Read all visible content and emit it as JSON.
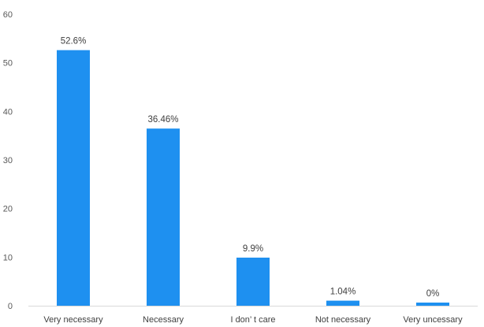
{
  "chart_data": {
    "type": "bar",
    "categories": [
      "Very necessary",
      "Necessary",
      "I don’ t care",
      "Not necessary",
      "Very uncessary"
    ],
    "values": [
      52.6,
      36.46,
      9.9,
      1.04,
      0
    ],
    "data_labels": [
      "52.6%",
      "36.46%",
      "9.9%",
      "1.04%",
      "0%"
    ],
    "y_ticks": [
      "0",
      "10",
      "20",
      "30",
      "40",
      "50",
      "60"
    ],
    "ylim": [
      0,
      60
    ],
    "grid": false,
    "legend": "none",
    "colors": {
      "bar": "#1E90F0",
      "axis": "#D9D9D9",
      "text": "#404040"
    }
  }
}
